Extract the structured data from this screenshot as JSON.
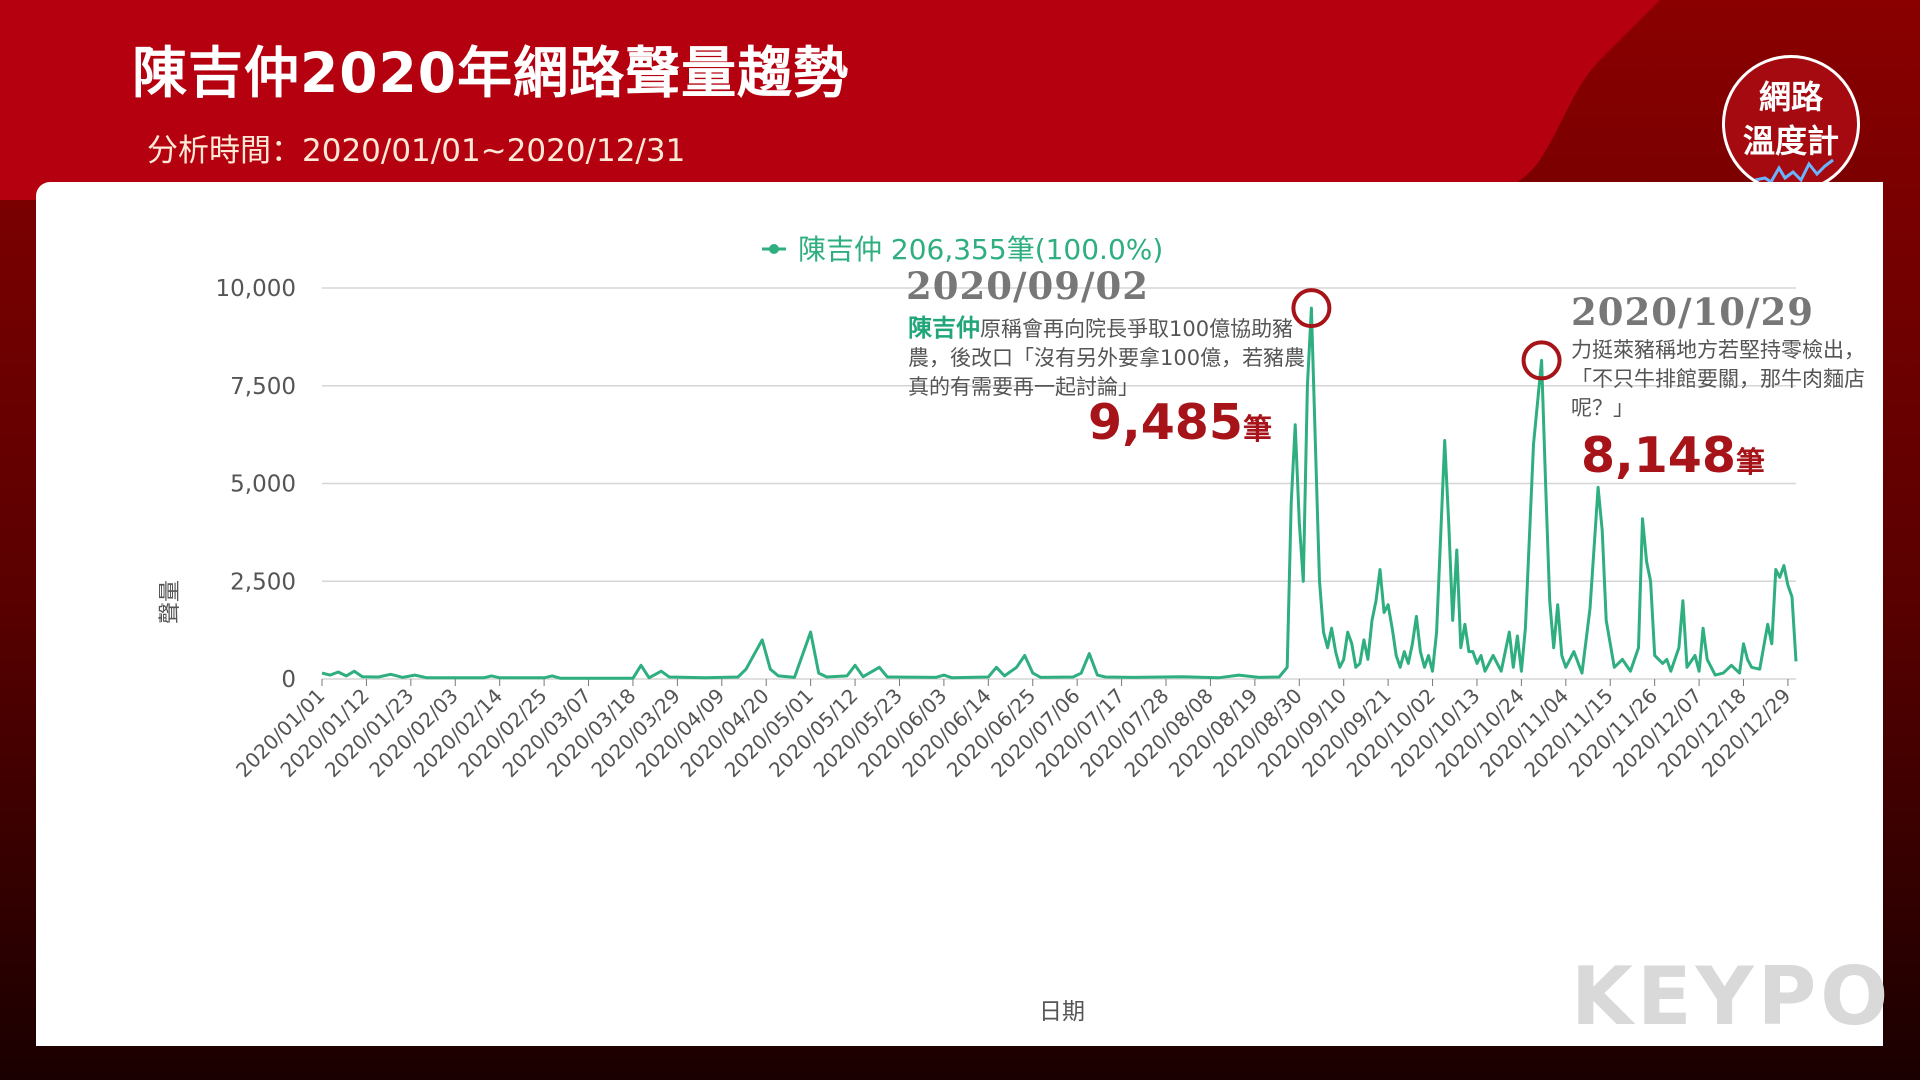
{
  "header": {
    "title": "陳吉仲2020年網路聲量趨勢",
    "date_range": "分析時間：2020/01/01~2020/12/31"
  },
  "brand": {
    "line1": "網路",
    "line2": "溫度計"
  },
  "watermark": "KEYPO",
  "colors": {
    "header_red": "#b4000f",
    "series": "#2fae80",
    "annotation_red": "#a6141a"
  },
  "annotations": [
    {
      "date": "2020/09/02",
      "name": "陳吉仲",
      "text": "原稱會再向院長爭取100億協助豬農，後改口「沒有另外要拿100億，若豬農真的有需要再一起討論」",
      "value": "9,485",
      "unit": "筆"
    },
    {
      "date": "2020/10/29",
      "text": "力挺萊豬稱地方若堅持零檢出，「不只牛排館要關，那牛肉麵店呢？」",
      "value": "8,148",
      "unit": "筆"
    }
  ],
  "chart_data": {
    "type": "line",
    "title": "",
    "xlabel": "日期",
    "ylabel": "聲量",
    "ylim": [
      0,
      10000
    ],
    "yticks": [
      0,
      2500,
      5000,
      7500,
      10000
    ],
    "ytick_labels": [
      "0",
      "2,500",
      "5,000",
      "7,500",
      "10,000"
    ],
    "x_tick_labels": [
      "2020/01/01",
      "2020/01/12",
      "2020/01/23",
      "2020/02/03",
      "2020/02/14",
      "2020/02/25",
      "2020/03/07",
      "2020/03/18",
      "2020/03/29",
      "2020/04/09",
      "2020/04/20",
      "2020/05/01",
      "2020/05/12",
      "2020/05/23",
      "2020/06/03",
      "2020/06/14",
      "2020/06/25",
      "2020/07/06",
      "2020/07/17",
      "2020/07/28",
      "2020/08/08",
      "2020/08/19",
      "2020/08/30",
      "2020/09/10",
      "2020/09/21",
      "2020/10/02",
      "2020/10/13",
      "2020/10/24",
      "2020/11/04",
      "2020/11/15",
      "2020/11/26",
      "2020/12/07",
      "2020/12/18",
      "2020/12/29"
    ],
    "x_start": "2020/01/01",
    "x_end": "2020/12/31",
    "grid": true,
    "legend": {
      "position": "top-center",
      "label": "陳吉仲 206,355筆(100.0%)"
    },
    "series": [
      {
        "name": "陳吉仲",
        "points": [
          [
            "2020/01/01",
            150
          ],
          [
            "2020/01/03",
            100
          ],
          [
            "2020/01/05",
            180
          ],
          [
            "2020/01/07",
            80
          ],
          [
            "2020/01/09",
            200
          ],
          [
            "2020/01/11",
            60
          ],
          [
            "2020/01/15",
            50
          ],
          [
            "2020/01/18",
            120
          ],
          [
            "2020/01/21",
            40
          ],
          [
            "2020/01/24",
            100
          ],
          [
            "2020/01/27",
            30
          ],
          [
            "2020/02/10",
            30
          ],
          [
            "2020/02/12",
            80
          ],
          [
            "2020/02/14",
            30
          ],
          [
            "2020/02/25",
            30
          ],
          [
            "2020/02/27",
            80
          ],
          [
            "2020/02/29",
            20
          ],
          [
            "2020/03/18",
            20
          ],
          [
            "2020/03/20",
            350
          ],
          [
            "2020/03/22",
            30
          ],
          [
            "2020/03/25",
            200
          ],
          [
            "2020/03/27",
            50
          ],
          [
            "2020/04/05",
            30
          ],
          [
            "2020/04/13",
            50
          ],
          [
            "2020/04/15",
            250
          ],
          [
            "2020/04/19",
            1000
          ],
          [
            "2020/04/21",
            250
          ],
          [
            "2020/04/23",
            80
          ],
          [
            "2020/04/27",
            40
          ],
          [
            "2020/05/01",
            1200
          ],
          [
            "2020/05/03",
            150
          ],
          [
            "2020/05/05",
            50
          ],
          [
            "2020/05/10",
            80
          ],
          [
            "2020/05/12",
            350
          ],
          [
            "2020/05/14",
            60
          ],
          [
            "2020/05/18",
            300
          ],
          [
            "2020/05/20",
            50
          ],
          [
            "2020/06/01",
            40
          ],
          [
            "2020/06/03",
            100
          ],
          [
            "2020/06/05",
            30
          ],
          [
            "2020/06/14",
            50
          ],
          [
            "2020/06/16",
            300
          ],
          [
            "2020/06/18",
            80
          ],
          [
            "2020/06/21",
            300
          ],
          [
            "2020/06/23",
            600
          ],
          [
            "2020/06/25",
            150
          ],
          [
            "2020/06/27",
            40
          ],
          [
            "2020/07/05",
            50
          ],
          [
            "2020/07/07",
            150
          ],
          [
            "2020/07/09",
            650
          ],
          [
            "2020/07/11",
            100
          ],
          [
            "2020/07/13",
            50
          ],
          [
            "2020/07/20",
            40
          ],
          [
            "2020/08/01",
            60
          ],
          [
            "2020/08/10",
            30
          ],
          [
            "2020/08/15",
            100
          ],
          [
            "2020/08/20",
            40
          ],
          [
            "2020/08/25",
            50
          ],
          [
            "2020/08/27",
            300
          ],
          [
            "2020/08/28",
            4500
          ],
          [
            "2020/08/29",
            6500
          ],
          [
            "2020/08/30",
            4000
          ],
          [
            "2020/08/31",
            2500
          ],
          [
            "2020/09/01",
            7500
          ],
          [
            "2020/09/02",
            9485
          ],
          [
            "2020/09/03",
            6000
          ],
          [
            "2020/09/04",
            2500
          ],
          [
            "2020/09/05",
            1200
          ],
          [
            "2020/09/06",
            800
          ],
          [
            "2020/09/07",
            1300
          ],
          [
            "2020/09/08",
            700
          ],
          [
            "2020/09/09",
            300
          ],
          [
            "2020/09/10",
            500
          ],
          [
            "2020/09/11",
            1200
          ],
          [
            "2020/09/12",
            900
          ],
          [
            "2020/09/13",
            300
          ],
          [
            "2020/09/14",
            400
          ],
          [
            "2020/09/15",
            1000
          ],
          [
            "2020/09/16",
            500
          ],
          [
            "2020/09/17",
            1500
          ],
          [
            "2020/09/18",
            2000
          ],
          [
            "2020/09/19",
            2800
          ],
          [
            "2020/09/20",
            1700
          ],
          [
            "2020/09/21",
            1900
          ],
          [
            "2020/09/22",
            1300
          ],
          [
            "2020/09/23",
            600
          ],
          [
            "2020/09/24",
            300
          ],
          [
            "2020/09/25",
            700
          ],
          [
            "2020/09/26",
            400
          ],
          [
            "2020/09/27",
            900
          ],
          [
            "2020/09/28",
            1600
          ],
          [
            "2020/09/29",
            700
          ],
          [
            "2020/09/30",
            300
          ],
          [
            "2020/10/01",
            600
          ],
          [
            "2020/10/02",
            200
          ],
          [
            "2020/10/03",
            1200
          ],
          [
            "2020/10/05",
            6100
          ],
          [
            "2020/10/06",
            4000
          ],
          [
            "2020/10/07",
            1500
          ],
          [
            "2020/10/08",
            3300
          ],
          [
            "2020/10/09",
            800
          ],
          [
            "2020/10/10",
            1400
          ],
          [
            "2020/10/11",
            700
          ],
          [
            "2020/10/12",
            700
          ],
          [
            "2020/10/13",
            400
          ],
          [
            "2020/10/14",
            600
          ],
          [
            "2020/10/15",
            200
          ],
          [
            "2020/10/17",
            600
          ],
          [
            "2020/10/19",
            200
          ],
          [
            "2020/10/21",
            1200
          ],
          [
            "2020/10/22",
            300
          ],
          [
            "2020/10/23",
            1100
          ],
          [
            "2020/10/24",
            200
          ],
          [
            "2020/10/25",
            1300
          ],
          [
            "2020/10/27",
            6000
          ],
          [
            "2020/10/29",
            8148
          ],
          [
            "2020/10/30",
            5000
          ],
          [
            "2020/10/31",
            2000
          ],
          [
            "2020/11/01",
            800
          ],
          [
            "2020/11/02",
            1900
          ],
          [
            "2020/11/03",
            600
          ],
          [
            "2020/11/04",
            300
          ],
          [
            "2020/11/06",
            700
          ],
          [
            "2020/11/08",
            150
          ],
          [
            "2020/11/10",
            1800
          ],
          [
            "2020/11/12",
            4900
          ],
          [
            "2020/11/13",
            3800
          ],
          [
            "2020/11/14",
            1500
          ],
          [
            "2020/11/16",
            300
          ],
          [
            "2020/11/18",
            500
          ],
          [
            "2020/11/20",
            200
          ],
          [
            "2020/11/22",
            800
          ],
          [
            "2020/11/23",
            4100
          ],
          [
            "2020/11/24",
            3000
          ],
          [
            "2020/11/25",
            2500
          ],
          [
            "2020/11/26",
            600
          ],
          [
            "2020/11/28",
            400
          ],
          [
            "2020/11/29",
            500
          ],
          [
            "2020/11/30",
            200
          ],
          [
            "2020/12/02",
            800
          ],
          [
            "2020/12/03",
            2000
          ],
          [
            "2020/12/04",
            300
          ],
          [
            "2020/12/06",
            600
          ],
          [
            "2020/12/07",
            200
          ],
          [
            "2020/12/08",
            1300
          ],
          [
            "2020/12/09",
            500
          ],
          [
            "2020/12/11",
            100
          ],
          [
            "2020/12/13",
            150
          ],
          [
            "2020/12/15",
            350
          ],
          [
            "2020/12/17",
            150
          ],
          [
            "2020/12/18",
            900
          ],
          [
            "2020/12/19",
            500
          ],
          [
            "2020/12/20",
            300
          ],
          [
            "2020/12/22",
            250
          ],
          [
            "2020/12/24",
            1400
          ],
          [
            "2020/12/25",
            900
          ],
          [
            "2020/12/26",
            2800
          ],
          [
            "2020/12/27",
            2600
          ],
          [
            "2020/12/28",
            2900
          ],
          [
            "2020/12/29",
            2400
          ],
          [
            "2020/12/30",
            2100
          ],
          [
            "2020/12/31",
            450
          ]
        ]
      }
    ],
    "highlights": [
      {
        "x": "2020/09/02",
        "y": 9485
      },
      {
        "x": "2020/10/29",
        "y": 8148
      }
    ]
  }
}
